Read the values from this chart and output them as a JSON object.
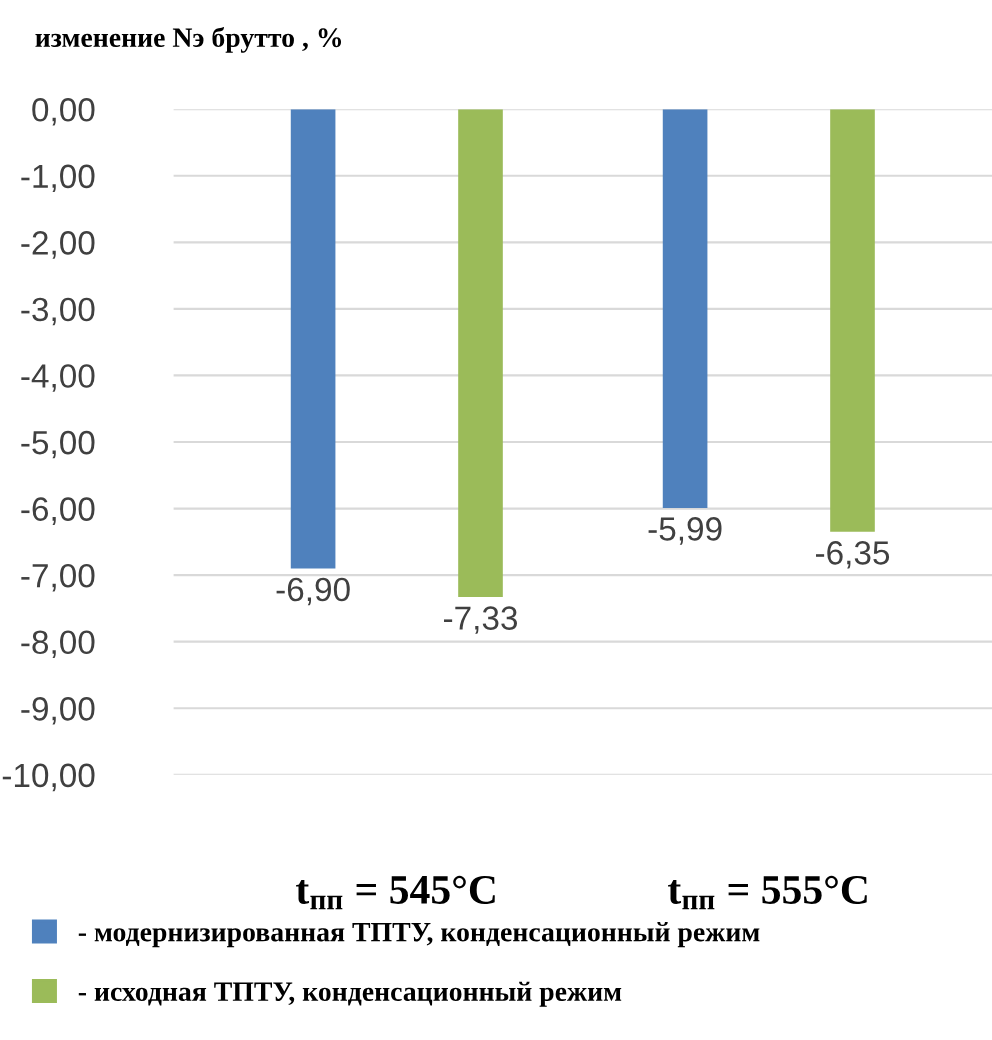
{
  "chart_data": {
    "type": "bar",
    "ylabel": "изменение Nэ брутто , %",
    "categories": [
      "t$_{пп}$ = 545°C",
      "t$_{пп}$ = 555°C"
    ],
    "series": [
      {
        "name": "- модернизированная ТПТУ, конденсационный режим",
        "color": "#4f81bd",
        "values": [
          -6.9,
          -5.99
        ],
        "value_labels": [
          "-6,90",
          "-5,99"
        ]
      },
      {
        "name": "- исходная ТПТУ, конденсационный режим",
        "color": "#9bbb59",
        "values": [
          -7.33,
          -6.35
        ],
        "value_labels": [
          "-7,33",
          "-6,35"
        ]
      }
    ],
    "ylim": [
      -10,
      0
    ],
    "yticks": [
      {
        "value": 0,
        "label": "0,00"
      },
      {
        "value": -1,
        "label": "-1,00"
      },
      {
        "value": -2,
        "label": "-2,00"
      },
      {
        "value": -3,
        "label": "-3,00"
      },
      {
        "value": -4,
        "label": "-4,00"
      },
      {
        "value": -5,
        "label": "-5,00"
      },
      {
        "value": -6,
        "label": "-6,00"
      },
      {
        "value": -7,
        "label": "-7,00"
      },
      {
        "value": -8,
        "label": "-8,00"
      },
      {
        "value": -9,
        "label": "-9,00"
      },
      {
        "value": -10,
        "label": "-10,00"
      }
    ],
    "grid": "y",
    "legend": "bottom"
  }
}
